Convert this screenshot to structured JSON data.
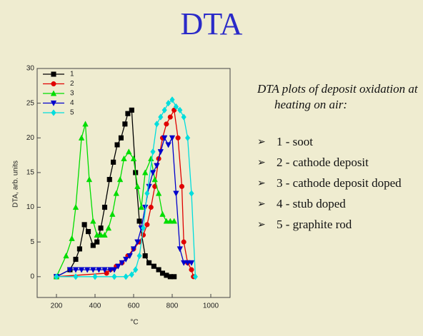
{
  "slide": {
    "title": "DTA",
    "caption": "DTA plots of deposit oxidation at heating on air:",
    "bullets": [
      "1 - soot",
      "2 - cathode deposit",
      "3 - cathode deposit doped",
      "4 - stub doped",
      "5 - graphite rod"
    ]
  },
  "chart_data": {
    "type": "line",
    "y_label": "DTA, arb. units",
    "x_label": "°C",
    "xlim": [
      100,
      1100
    ],
    "xticks": [
      200,
      400,
      600,
      800,
      1000
    ],
    "ylim": [
      -3,
      30
    ],
    "yticks": [
      0,
      5,
      10,
      15,
      20,
      25,
      30
    ],
    "legend": "top-left",
    "series": [
      {
        "name": "1",
        "color": "#000000",
        "marker": "square",
        "x": [
          200,
          270,
          300,
          320,
          345,
          365,
          390,
          410,
          430,
          450,
          475,
          495,
          515,
          535,
          555,
          570,
          590,
          610,
          630,
          660,
          680,
          705,
          730,
          750,
          770,
          790,
          810
        ],
        "values": [
          0,
          1,
          2.5,
          4,
          7.5,
          6.5,
          4.5,
          5,
          7,
          10,
          14,
          16.5,
          19,
          20,
          22,
          23.5,
          24,
          15,
          8,
          3,
          2,
          1.5,
          1,
          0.5,
          0.2,
          0,
          0
        ]
      },
      {
        "name": "2",
        "color": "#e00000",
        "marker": "circle",
        "x": [
          200,
          460,
          480,
          510,
          540,
          570,
          600,
          630,
          650,
          670,
          690,
          710,
          730,
          750,
          770,
          790,
          810,
          830,
          850,
          860,
          880,
          900,
          910
        ],
        "values": [
          0,
          0.5,
          1,
          1.5,
          2,
          3,
          4,
          5,
          6,
          7.5,
          10,
          13,
          17,
          20,
          22,
          23,
          24,
          20,
          13,
          5,
          2,
          1,
          0
        ]
      },
      {
        "name": "3",
        "color": "#00dd00",
        "marker": "triangle-up",
        "x": [
          200,
          250,
          280,
          300,
          330,
          350,
          370,
          390,
          410,
          430,
          450,
          470,
          490,
          510,
          530,
          550,
          575,
          600,
          620,
          640,
          660,
          690,
          710,
          730,
          750,
          770,
          790,
          810
        ],
        "values": [
          0,
          3,
          5.5,
          10,
          20,
          22,
          14,
          8,
          6,
          6,
          6,
          7,
          9,
          12,
          14,
          17,
          18,
          17,
          13,
          10,
          15,
          17,
          14,
          12,
          9,
          8,
          8,
          8
        ]
      },
      {
        "name": "4",
        "color": "#0000cc",
        "marker": "triangle-down",
        "x": [
          200,
          270,
          300,
          330,
          360,
          390,
          420,
          450,
          480,
          500,
          520,
          540,
          560,
          580,
          600,
          620,
          640,
          660,
          680,
          700,
          720,
          740,
          760,
          780,
          800,
          820,
          840,
          860,
          880,
          900
        ],
        "values": [
          0,
          1,
          1,
          1,
          1,
          1,
          1,
          1,
          1,
          1,
          1.5,
          2,
          2.5,
          3,
          4,
          5,
          7,
          10,
          13,
          15,
          16,
          18,
          20,
          19,
          20,
          12,
          4,
          2,
          2,
          2
        ]
      },
      {
        "name": "5",
        "color": "#00dddd",
        "marker": "diamond",
        "x": [
          200,
          300,
          400,
          500,
          560,
          590,
          610,
          630,
          650,
          670,
          700,
          720,
          740,
          760,
          780,
          800,
          820,
          840,
          860,
          880,
          900,
          920
        ],
        "values": [
          0,
          0,
          0,
          0,
          0,
          0.3,
          1,
          3,
          7,
          12,
          18,
          22,
          23,
          24,
          25,
          25.5,
          24.5,
          24,
          23,
          20,
          12,
          0
        ]
      }
    ]
  }
}
